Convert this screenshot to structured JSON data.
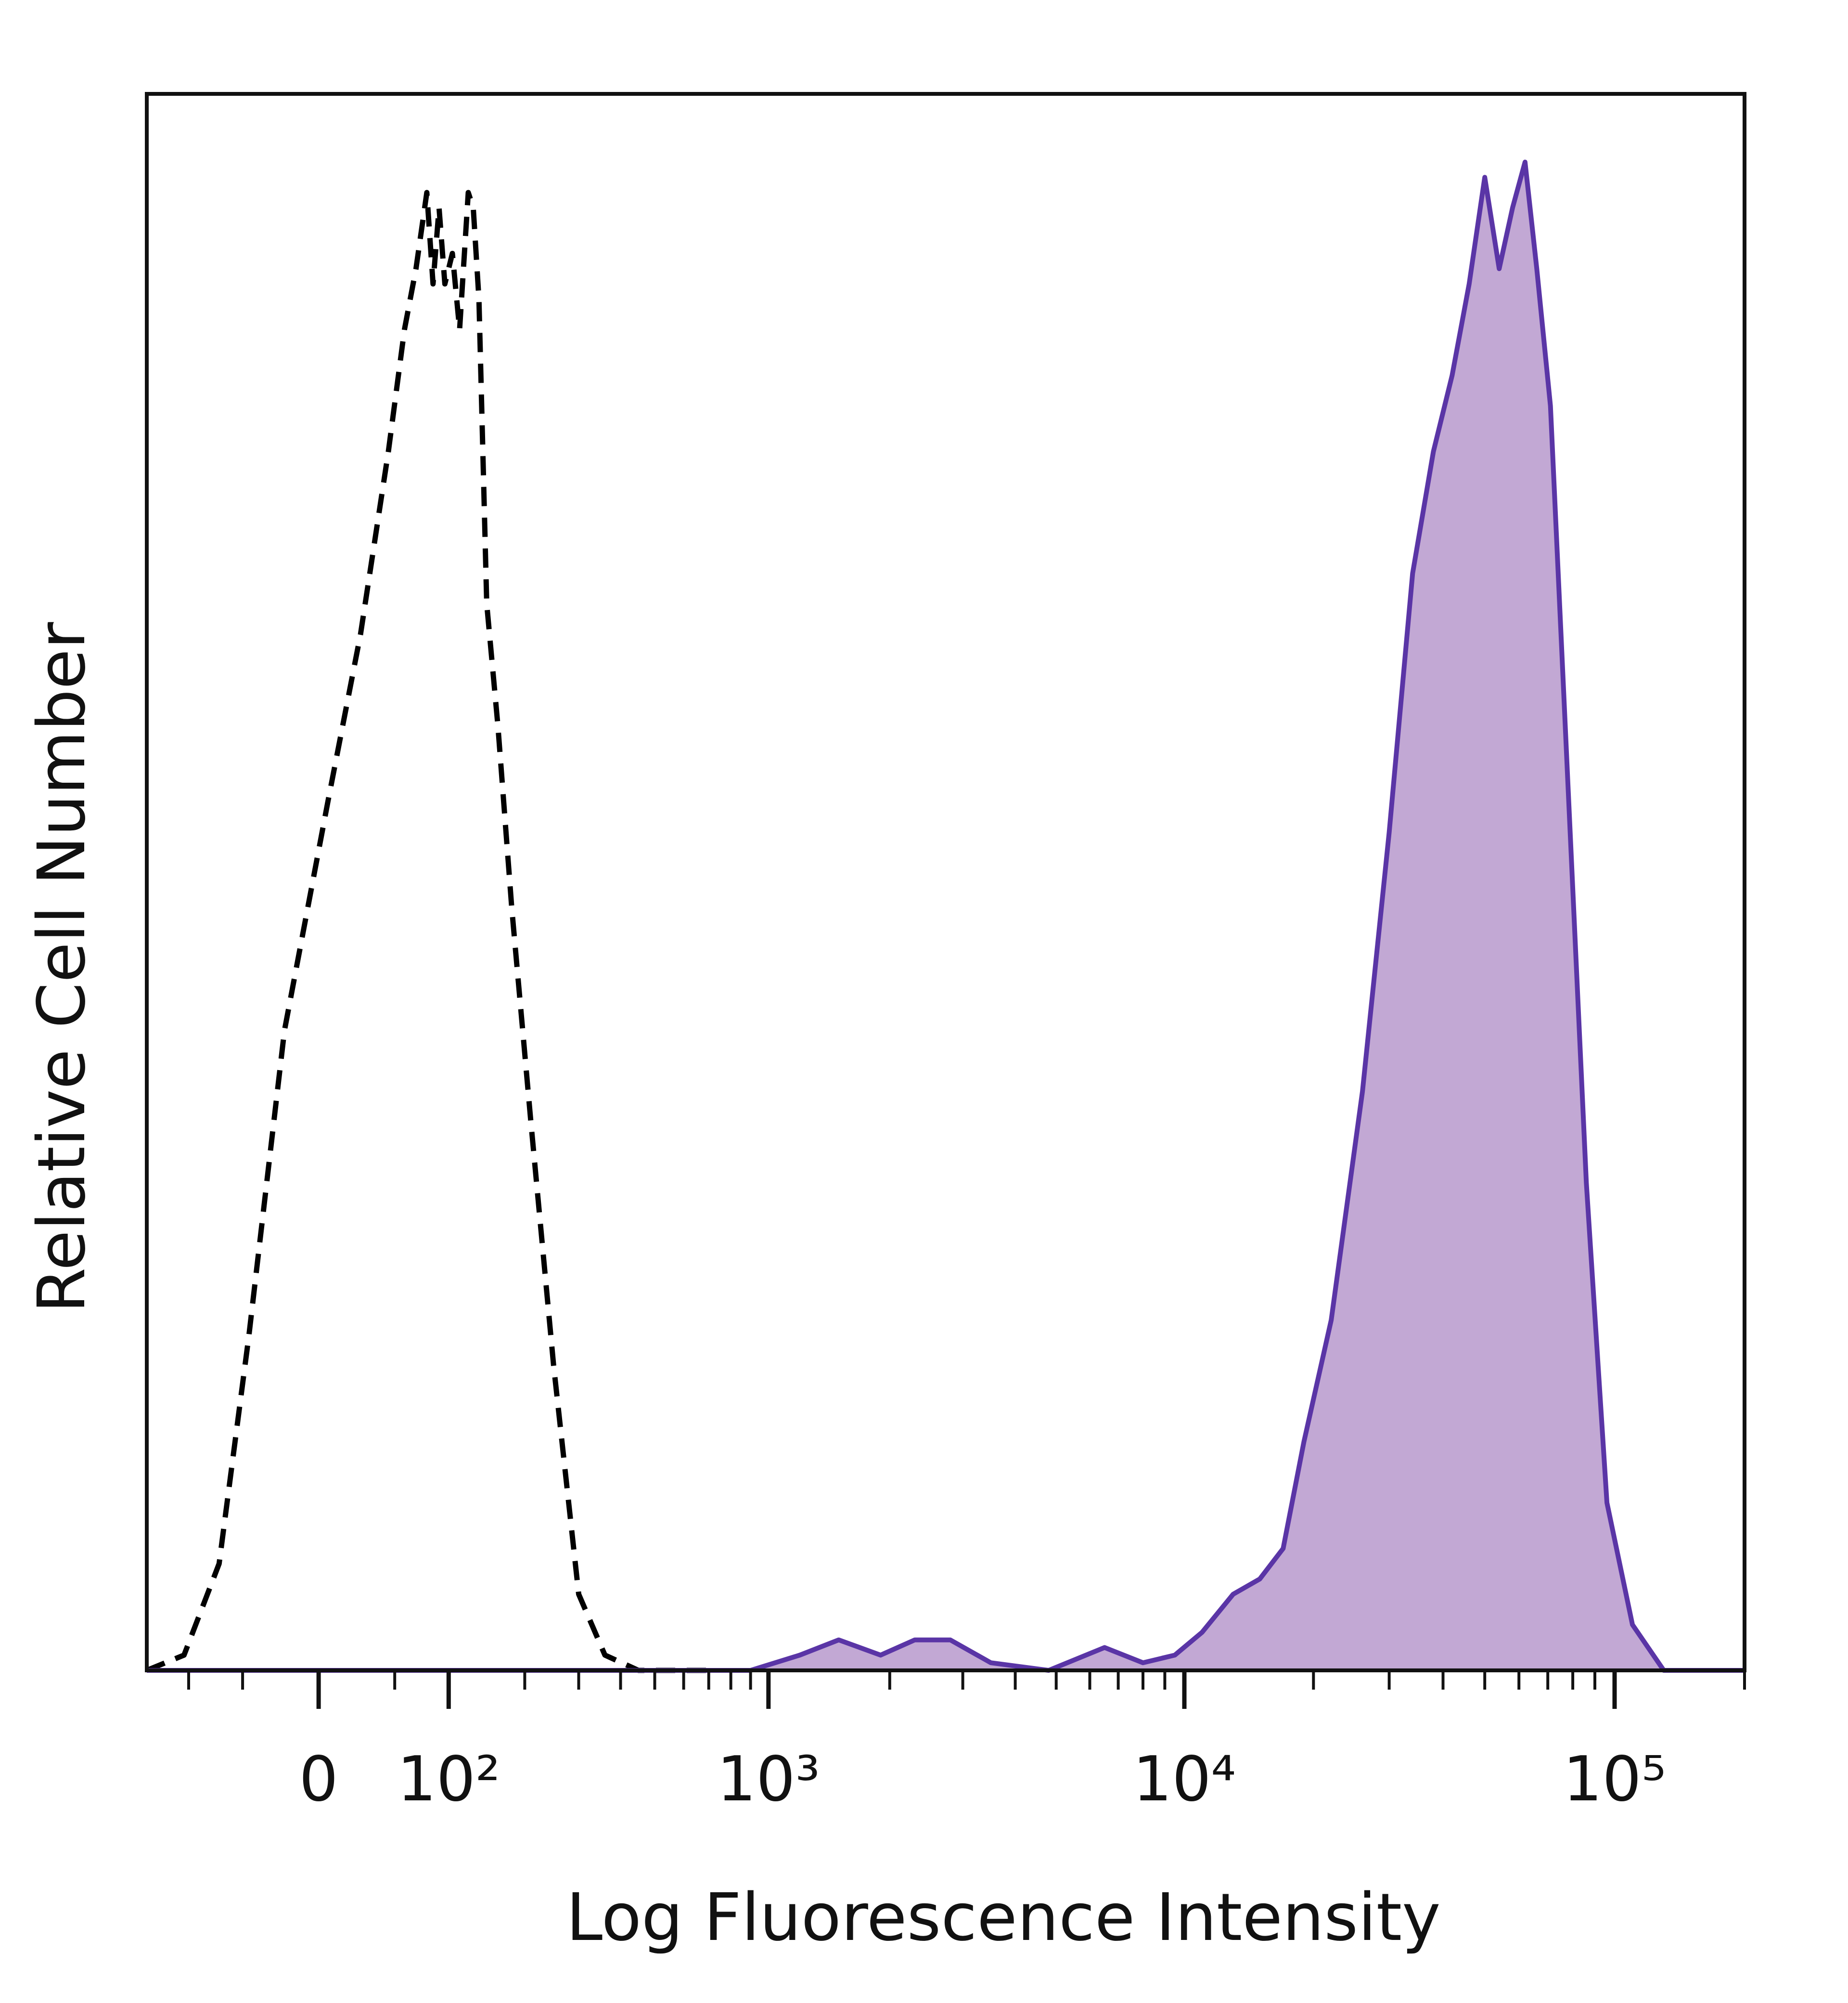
{
  "chart_data": {
    "type": "area",
    "title": "",
    "xlabel": "Log Fluorescence Intensity",
    "ylabel": "Relative Cell Number",
    "x_scale": "biexponential",
    "y_scale": "linear",
    "xlim": [
      -150,
      200000
    ],
    "ylim": [
      0,
      1
    ],
    "grid": false,
    "legend": "none",
    "x_ticks": [
      {
        "value": 0,
        "label": "0"
      },
      {
        "value": 100,
        "label": "10²"
      },
      {
        "value": 1000,
        "label": "10³"
      },
      {
        "value": 10000,
        "label": "10⁴"
      },
      {
        "value": 100000,
        "label": "10⁵"
      }
    ],
    "series": [
      {
        "style": "dashed",
        "color": "#000000",
        "fill": false,
        "points": [
          [
            -150,
            0.0
          ],
          [
            -105,
            0.01
          ],
          [
            -70,
            0.07
          ],
          [
            -45,
            0.22
          ],
          [
            -20,
            0.42
          ],
          [
            5,
            0.57
          ],
          [
            25,
            0.68
          ],
          [
            45,
            0.8
          ],
          [
            58,
            0.88
          ],
          [
            68,
            0.92
          ],
          [
            78,
            0.97
          ],
          [
            84,
            0.91
          ],
          [
            90,
            0.96
          ],
          [
            96,
            0.91
          ],
          [
            104,
            0.93
          ],
          [
            112,
            0.88
          ],
          [
            122,
            0.97
          ],
          [
            128,
            0.96
          ],
          [
            135,
            0.9
          ],
          [
            145,
            0.7
          ],
          [
            160,
            0.62
          ],
          [
            180,
            0.5
          ],
          [
            210,
            0.36
          ],
          [
            250,
            0.2
          ],
          [
            300,
            0.05
          ],
          [
            360,
            0.01
          ],
          [
            450,
            0.0
          ],
          [
            700,
            0.0
          ]
        ]
      },
      {
        "style": "solid",
        "color": "#5a35a6",
        "fill": true,
        "fill_color": "#c2a8d4",
        "points": [
          [
            -150,
            0.0
          ],
          [
            300,
            0.0
          ],
          [
            900,
            0.0
          ],
          [
            1200,
            0.01
          ],
          [
            1500,
            0.02
          ],
          [
            1900,
            0.01
          ],
          [
            2300,
            0.02
          ],
          [
            2800,
            0.02
          ],
          [
            3500,
            0.005
          ],
          [
            4800,
            0.0
          ],
          [
            6500,
            0.015
          ],
          [
            8000,
            0.005
          ],
          [
            9500,
            0.01
          ],
          [
            11000,
            0.025
          ],
          [
            13000,
            0.05
          ],
          [
            15000,
            0.06
          ],
          [
            17000,
            0.08
          ],
          [
            19000,
            0.15
          ],
          [
            22000,
            0.23
          ],
          [
            26000,
            0.38
          ],
          [
            30000,
            0.55
          ],
          [
            34000,
            0.72
          ],
          [
            38000,
            0.8
          ],
          [
            42000,
            0.85
          ],
          [
            46000,
            0.91
          ],
          [
            50000,
            0.98
          ],
          [
            54000,
            0.92
          ],
          [
            58000,
            0.96
          ],
          [
            62000,
            0.99
          ],
          [
            66000,
            0.92
          ],
          [
            71000,
            0.83
          ],
          [
            78000,
            0.58
          ],
          [
            86000,
            0.32
          ],
          [
            96000,
            0.11
          ],
          [
            110000,
            0.03
          ],
          [
            130000,
            0.0
          ],
          [
            200000,
            0.0
          ]
        ]
      }
    ]
  }
}
